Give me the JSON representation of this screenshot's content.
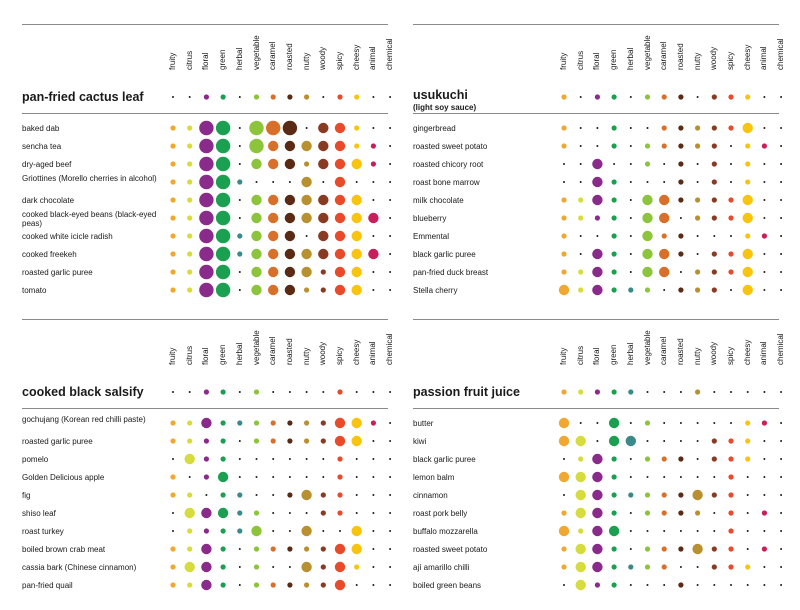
{
  "columns": [
    "fruity",
    "citrus",
    "floral",
    "green",
    "herbal",
    "vegetable",
    "caramel",
    "roasted",
    "nutty",
    "woody",
    "spicy",
    "cheesy",
    "animal",
    "chemical"
  ],
  "colors": {
    "fruity": "#f0a830",
    "citrus": "#d6dc3c",
    "floral": "#8a2a8a",
    "green": "#1aa050",
    "herbal": "#3a8a8a",
    "vegetable": "#8cc43c",
    "caramel": "#d8702a",
    "roasted": "#5a2a14",
    "nutty": "#b89030",
    "woody": "#8a3a20",
    "spicy": "#e84a2a",
    "cheesy": "#f8c410",
    "animal": "#c81e5a",
    "chemical": "#1a1a1a"
  },
  "chart_data": [
    {
      "type": "bubble-matrix",
      "title": "pan-fried cactus leaf",
      "subtitle": "",
      "title_profile": [
        1,
        1,
        2,
        2,
        1,
        2,
        2,
        2,
        2,
        1,
        2,
        2,
        1,
        1
      ],
      "rows": [
        {
          "label": "baked dab",
          "values": [
            2,
            2,
            5,
            5,
            1,
            5,
            5,
            5,
            1,
            4,
            4,
            2,
            1,
            1
          ]
        },
        {
          "label": "sencha tea",
          "values": [
            2,
            2,
            5,
            5,
            1,
            5,
            4,
            4,
            4,
            4,
            4,
            2,
            2,
            1
          ]
        },
        {
          "label": "dry-aged beef",
          "values": [
            2,
            2,
            5,
            5,
            1,
            4,
            4,
            4,
            2,
            4,
            4,
            4,
            2,
            1
          ]
        },
        {
          "label": "Griottines (Morello cherries in alcohol)",
          "values": [
            2,
            2,
            5,
            5,
            2,
            1,
            1,
            1,
            4,
            1,
            4,
            1,
            1,
            1
          ]
        },
        {
          "label": "dark chocolate",
          "values": [
            2,
            2,
            5,
            5,
            1,
            4,
            4,
            4,
            4,
            4,
            4,
            4,
            1,
            1
          ]
        },
        {
          "label": "cooked black-eyed beans (black-eyed peas)",
          "values": [
            2,
            2,
            5,
            5,
            1,
            4,
            4,
            4,
            4,
            4,
            4,
            4,
            4,
            1
          ]
        },
        {
          "label": "cooked white icicle radish",
          "values": [
            2,
            2,
            5,
            5,
            2,
            4,
            4,
            4,
            1,
            4,
            4,
            4,
            1,
            1
          ]
        },
        {
          "label": "cooked freekeh",
          "values": [
            2,
            2,
            5,
            5,
            2,
            4,
            4,
            4,
            4,
            4,
            4,
            4,
            4,
            1
          ]
        },
        {
          "label": "roasted garlic puree",
          "values": [
            2,
            2,
            5,
            5,
            1,
            4,
            4,
            4,
            4,
            2,
            4,
            4,
            1,
            1
          ]
        },
        {
          "label": "tomato",
          "values": [
            2,
            2,
            5,
            5,
            1,
            4,
            4,
            4,
            2,
            2,
            4,
            4,
            1,
            1
          ]
        }
      ]
    },
    {
      "type": "bubble-matrix",
      "title": "usukuchi",
      "subtitle": "(light soy sauce)",
      "title_profile": [
        2,
        1,
        2,
        2,
        1,
        2,
        2,
        2,
        1,
        2,
        2,
        2,
        1,
        1
      ],
      "rows": [
        {
          "label": "gingerbread",
          "values": [
            2,
            1,
            1,
            2,
            1,
            1,
            2,
            2,
            2,
            2,
            2,
            4,
            1,
            1
          ]
        },
        {
          "label": "roasted sweet potato",
          "values": [
            2,
            1,
            1,
            2,
            1,
            2,
            2,
            2,
            2,
            2,
            1,
            2,
            2,
            1
          ]
        },
        {
          "label": "roasted chicory root",
          "values": [
            1,
            1,
            4,
            1,
            1,
            2,
            1,
            2,
            1,
            2,
            1,
            2,
            1,
            1
          ]
        },
        {
          "label": "roast bone marrow",
          "values": [
            1,
            1,
            4,
            2,
            1,
            1,
            1,
            2,
            1,
            2,
            1,
            2,
            1,
            1
          ]
        },
        {
          "label": "milk chocolate",
          "values": [
            2,
            2,
            4,
            2,
            1,
            4,
            4,
            2,
            2,
            2,
            2,
            4,
            1,
            1
          ]
        },
        {
          "label": "blueberry",
          "values": [
            2,
            2,
            2,
            2,
            1,
            4,
            4,
            1,
            2,
            2,
            2,
            4,
            1,
            1
          ]
        },
        {
          "label": "Emmental",
          "values": [
            2,
            1,
            1,
            2,
            1,
            4,
            2,
            2,
            1,
            1,
            1,
            2,
            2,
            1
          ]
        },
        {
          "label": "black garlic puree",
          "values": [
            2,
            1,
            4,
            2,
            1,
            4,
            4,
            2,
            1,
            2,
            2,
            4,
            1,
            1
          ]
        },
        {
          "label": "pan-fried duck breast",
          "values": [
            2,
            2,
            4,
            2,
            1,
            4,
            4,
            1,
            2,
            2,
            2,
            4,
            1,
            1
          ]
        },
        {
          "label": "Stella cherry",
          "values": [
            4,
            2,
            4,
            2,
            2,
            2,
            1,
            2,
            2,
            2,
            1,
            4,
            1,
            1
          ]
        }
      ]
    },
    {
      "type": "bubble-matrix",
      "title": "cooked black salsify",
      "subtitle": "",
      "title_profile": [
        1,
        1,
        2,
        2,
        1,
        2,
        1,
        1,
        1,
        1,
        2,
        1,
        1,
        1
      ],
      "rows": [
        {
          "label": "gochujang (Korean red chilli paste)",
          "values": [
            2,
            2,
            4,
            2,
            2,
            2,
            2,
            2,
            2,
            2,
            4,
            4,
            2,
            1
          ]
        },
        {
          "label": "roasted garlic puree",
          "values": [
            2,
            2,
            2,
            2,
            1,
            2,
            2,
            2,
            2,
            2,
            4,
            4,
            1,
            1
          ]
        },
        {
          "label": "pomelo",
          "values": [
            1,
            4,
            2,
            2,
            1,
            1,
            1,
            1,
            1,
            1,
            2,
            1,
            1,
            1
          ]
        },
        {
          "label": "Golden Delicious apple",
          "values": [
            2,
            1,
            2,
            4,
            1,
            1,
            1,
            1,
            1,
            1,
            2,
            1,
            1,
            1
          ]
        },
        {
          "label": "fig",
          "values": [
            2,
            2,
            1,
            2,
            2,
            1,
            1,
            2,
            4,
            2,
            2,
            1,
            1,
            1
          ]
        },
        {
          "label": "shiso leaf",
          "values": [
            1,
            4,
            4,
            4,
            2,
            2,
            1,
            1,
            1,
            2,
            2,
            1,
            1,
            1
          ]
        },
        {
          "label": "roast turkey",
          "values": [
            1,
            2,
            2,
            2,
            2,
            4,
            1,
            1,
            4,
            1,
            1,
            4,
            1,
            1
          ]
        },
        {
          "label": "boiled brown crab meat",
          "values": [
            2,
            2,
            4,
            2,
            1,
            2,
            2,
            2,
            2,
            2,
            4,
            4,
            1,
            1
          ]
        },
        {
          "label": "cassia bark (Chinese cinnamon)",
          "values": [
            2,
            4,
            4,
            2,
            1,
            2,
            1,
            1,
            4,
            2,
            4,
            2,
            1,
            1
          ]
        },
        {
          "label": "pan-fried quail",
          "values": [
            2,
            2,
            4,
            2,
            1,
            2,
            2,
            2,
            2,
            2,
            4,
            1,
            1,
            1
          ]
        }
      ]
    },
    {
      "type": "bubble-matrix",
      "title": "passion fruit juice",
      "subtitle": "",
      "title_profile": [
        2,
        2,
        2,
        2,
        2,
        1,
        1,
        1,
        2,
        1,
        1,
        1,
        1,
        1
      ],
      "rows": [
        {
          "label": "butter",
          "values": [
            4,
            1,
            1,
            4,
            1,
            2,
            1,
            1,
            1,
            1,
            1,
            2,
            2,
            1
          ]
        },
        {
          "label": "kiwi",
          "values": [
            4,
            4,
            1,
            4,
            4,
            1,
            1,
            1,
            1,
            2,
            2,
            2,
            1,
            1
          ]
        },
        {
          "label": "black garlic puree",
          "values": [
            1,
            2,
            4,
            2,
            1,
            2,
            2,
            2,
            1,
            2,
            2,
            2,
            1,
            1
          ]
        },
        {
          "label": "lemon balm",
          "values": [
            4,
            4,
            4,
            2,
            1,
            1,
            1,
            1,
            1,
            1,
            2,
            1,
            1,
            1
          ]
        },
        {
          "label": "cinnamon",
          "values": [
            1,
            4,
            4,
            2,
            2,
            2,
            2,
            2,
            4,
            2,
            2,
            1,
            1,
            1
          ]
        },
        {
          "label": "roast pork belly",
          "values": [
            2,
            4,
            4,
            2,
            1,
            2,
            2,
            2,
            2,
            1,
            2,
            1,
            2,
            1
          ]
        },
        {
          "label": "buffalo mozzarella",
          "values": [
            4,
            2,
            4,
            4,
            1,
            1,
            1,
            1,
            1,
            1,
            2,
            1,
            1,
            1
          ]
        },
        {
          "label": "roasted sweet potato",
          "values": [
            2,
            4,
            4,
            2,
            1,
            2,
            2,
            2,
            4,
            2,
            2,
            1,
            2,
            1
          ]
        },
        {
          "label": "ají amarillo chilli",
          "values": [
            2,
            4,
            4,
            2,
            2,
            2,
            2,
            1,
            1,
            2,
            2,
            2,
            1,
            1
          ]
        },
        {
          "label": "boiled green beans",
          "values": [
            1,
            4,
            2,
            2,
            1,
            1,
            1,
            2,
            1,
            1,
            1,
            1,
            1,
            1
          ]
        }
      ]
    }
  ]
}
